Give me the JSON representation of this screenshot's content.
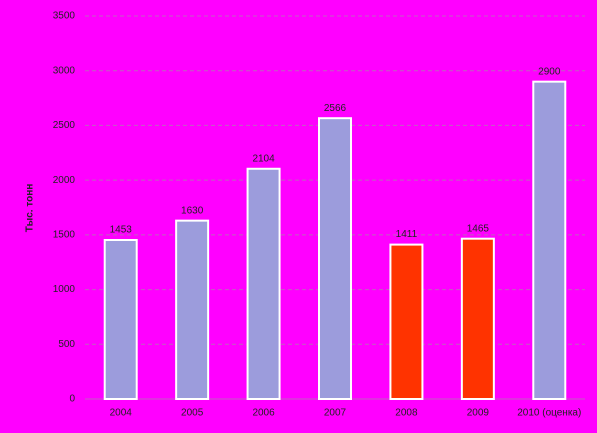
{
  "chart_data": {
    "type": "bar",
    "y_label": "Тыс. тонн",
    "categories": [
      "2004",
      "2005",
      "2006",
      "2007",
      "2008",
      "2009",
      "2010 (оценка)"
    ],
    "values": [
      1453,
      1630,
      2104,
      2566,
      1411,
      1465,
      2900
    ],
    "colors": [
      "#9c9cdc",
      "#9c9cdc",
      "#9c9cdc",
      "#9c9cdc",
      "#ff3300",
      "#ff3300",
      "#9c9cdc"
    ],
    "ylim": [
      0,
      3500
    ],
    "yticks": [
      0,
      500,
      1000,
      1500,
      2000,
      2500,
      3000,
      3500
    ],
    "grid": true
  }
}
